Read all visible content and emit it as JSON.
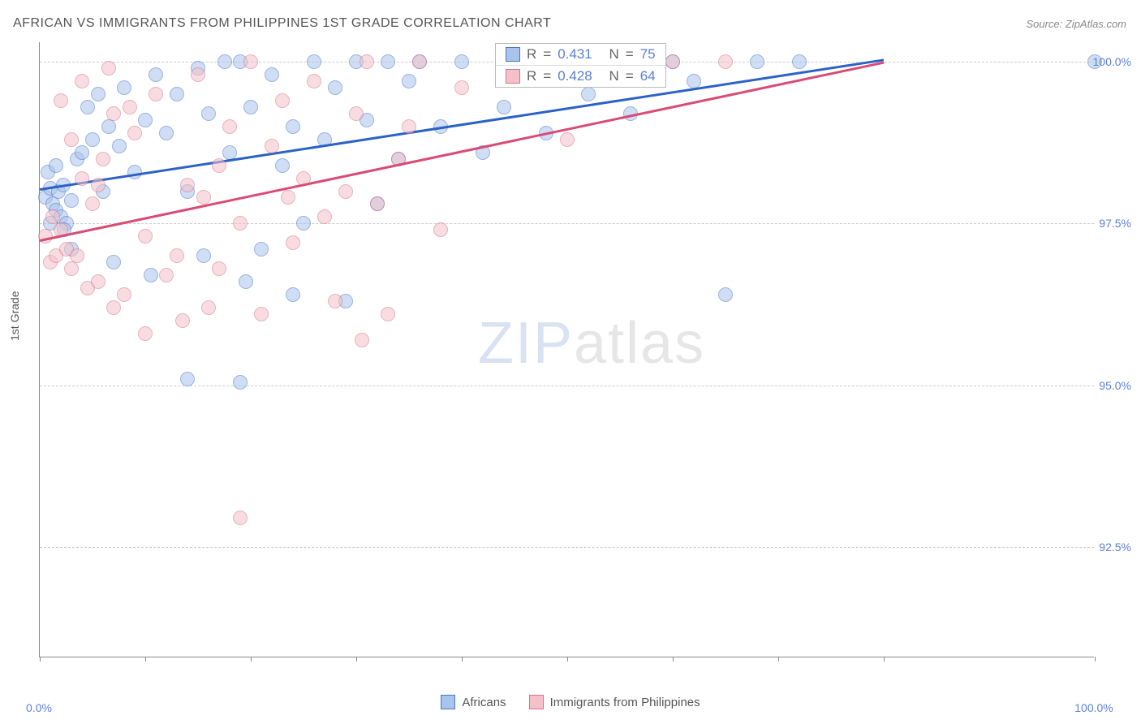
{
  "title": "AFRICAN VS IMMIGRANTS FROM PHILIPPINES 1ST GRADE CORRELATION CHART",
  "source": "Source: ZipAtlas.com",
  "ylabel": "1st Grade",
  "watermark": {
    "zip": "ZIP",
    "atlas": "atlas"
  },
  "chart": {
    "type": "scatter",
    "background_color": "#ffffff",
    "grid_color": "#cccccc",
    "axis_color": "#888888",
    "title_fontsize": 16,
    "label_fontsize": 14,
    "xlim": [
      0,
      100
    ],
    "ylim": [
      90.8,
      100.3
    ],
    "x_ticks": [
      0,
      10,
      20,
      30,
      40,
      50,
      60,
      70,
      80,
      100
    ],
    "y_grid": [
      92.5,
      95.0,
      97.5,
      100.0
    ],
    "y_tick_labels": [
      "92.5%",
      "95.0%",
      "97.5%",
      "100.0%"
    ],
    "x_tick_labels": {
      "0": "0.0%",
      "100": "100.0%"
    },
    "tick_label_color": "#5b7fd6",
    "marker_radius": 9,
    "marker_opacity": 0.55,
    "marker_border_alpha": 0.85,
    "line_width": 2.5
  },
  "series": [
    {
      "name": "Africans",
      "fill_color": "#a9c4ec",
      "stroke_color": "#4a76c6",
      "line_color": "#2b62c7",
      "R": "0.431",
      "N": "75",
      "trend": {
        "x1": 0,
        "y1": 98.05,
        "x2": 80,
        "y2": 100.05
      },
      "points": [
        [
          0.5,
          97.9
        ],
        [
          0.8,
          98.3
        ],
        [
          1.0,
          98.05
        ],
        [
          1.2,
          97.8
        ],
        [
          1.5,
          97.7
        ],
        [
          1.8,
          98.0
        ],
        [
          2.0,
          97.6
        ],
        [
          2.2,
          98.1
        ],
        [
          2.5,
          97.5
        ],
        [
          3.0,
          97.85
        ],
        [
          1.0,
          97.5
        ],
        [
          1.5,
          98.4
        ],
        [
          2.3,
          97.4
        ],
        [
          3.0,
          97.1
        ],
        [
          3.5,
          98.5
        ],
        [
          4.0,
          98.6
        ],
        [
          4.5,
          99.3
        ],
        [
          5.0,
          98.8
        ],
        [
          5.5,
          99.5
        ],
        [
          6.0,
          98.0
        ],
        [
          6.5,
          99.0
        ],
        [
          7.5,
          98.7
        ],
        [
          8.0,
          99.6
        ],
        [
          9.0,
          98.3
        ],
        [
          10.0,
          99.1
        ],
        [
          11.0,
          99.8
        ],
        [
          12.0,
          98.9
        ],
        [
          13.0,
          99.5
        ],
        [
          14.0,
          98.0
        ],
        [
          15.0,
          99.9
        ],
        [
          16.0,
          99.2
        ],
        [
          17.5,
          100.0
        ],
        [
          18.0,
          98.6
        ],
        [
          19.0,
          100.0
        ],
        [
          20.0,
          99.3
        ],
        [
          21.0,
          97.1
        ],
        [
          22.0,
          99.8
        ],
        [
          23.0,
          98.4
        ],
        [
          24.0,
          99.0
        ],
        [
          25.0,
          97.5
        ],
        [
          26.0,
          100.0
        ],
        [
          27.0,
          98.8
        ],
        [
          28.0,
          99.6
        ],
        [
          29.0,
          96.3
        ],
        [
          30.0,
          100.0
        ],
        [
          31.0,
          99.1
        ],
        [
          32.0,
          97.8
        ],
        [
          33.0,
          100.0
        ],
        [
          34.0,
          98.5
        ],
        [
          35.0,
          99.7
        ],
        [
          36.0,
          100.0
        ],
        [
          38.0,
          99.0
        ],
        [
          40.0,
          100.0
        ],
        [
          42.0,
          98.6
        ],
        [
          44.0,
          99.3
        ],
        [
          46.0,
          100.0
        ],
        [
          48.0,
          98.9
        ],
        [
          50.0,
          100.0
        ],
        [
          52.0,
          99.5
        ],
        [
          54.0,
          100.0
        ],
        [
          56.0,
          99.2
        ],
        [
          58.0,
          100.0
        ],
        [
          60.0,
          100.0
        ],
        [
          62.0,
          99.7
        ],
        [
          65.0,
          96.4
        ],
        [
          68.0,
          100.0
        ],
        [
          72.0,
          100.0
        ],
        [
          100.0,
          100.0
        ],
        [
          14.0,
          95.1
        ],
        [
          19.0,
          95.05
        ],
        [
          7.0,
          96.9
        ],
        [
          10.5,
          96.7
        ],
        [
          24.0,
          96.4
        ],
        [
          15.5,
          97.0
        ],
        [
          19.5,
          96.6
        ]
      ]
    },
    {
      "name": "Immigrants from Philippines",
      "fill_color": "#f4c1c9",
      "stroke_color": "#d6738a",
      "line_color": "#d94b73",
      "R": "0.428",
      "N": "64",
      "trend": {
        "x1": 0,
        "y1": 97.25,
        "x2": 80,
        "y2": 100.0
      },
      "points": [
        [
          0.5,
          97.3
        ],
        [
          1.0,
          96.9
        ],
        [
          1.2,
          97.6
        ],
        [
          1.5,
          97.0
        ],
        [
          2.0,
          97.4
        ],
        [
          2.5,
          97.1
        ],
        [
          3.0,
          96.8
        ],
        [
          3.5,
          97.0
        ],
        [
          4.0,
          98.2
        ],
        [
          4.5,
          96.5
        ],
        [
          5.0,
          97.8
        ],
        [
          5.5,
          96.6
        ],
        [
          6.0,
          98.5
        ],
        [
          7.0,
          99.2
        ],
        [
          8.0,
          96.4
        ],
        [
          9.0,
          98.9
        ],
        [
          10.0,
          97.3
        ],
        [
          11.0,
          99.5
        ],
        [
          12.0,
          96.7
        ],
        [
          13.0,
          97.0
        ],
        [
          14.0,
          98.1
        ],
        [
          15.0,
          99.8
        ],
        [
          16.0,
          96.2
        ],
        [
          17.0,
          98.4
        ],
        [
          18.0,
          99.0
        ],
        [
          19.0,
          97.5
        ],
        [
          20.0,
          100.0
        ],
        [
          21.0,
          96.1
        ],
        [
          22.0,
          98.7
        ],
        [
          23.0,
          99.4
        ],
        [
          24.0,
          97.2
        ],
        [
          25.0,
          98.2
        ],
        [
          26.0,
          99.7
        ],
        [
          27.0,
          97.6
        ],
        [
          28.0,
          96.3
        ],
        [
          29.0,
          98.0
        ],
        [
          30.0,
          99.2
        ],
        [
          31.0,
          100.0
        ],
        [
          32.0,
          97.8
        ],
        [
          33.0,
          96.1
        ],
        [
          34.0,
          98.5
        ],
        [
          35.0,
          99.0
        ],
        [
          36.0,
          100.0
        ],
        [
          38.0,
          97.4
        ],
        [
          40.0,
          99.6
        ],
        [
          45.0,
          100.0
        ],
        [
          50.0,
          98.8
        ],
        [
          55.0,
          100.0
        ],
        [
          60.0,
          100.0
        ],
        [
          65.0,
          100.0
        ],
        [
          2.0,
          99.4
        ],
        [
          4.0,
          99.7
        ],
        [
          6.5,
          99.9
        ],
        [
          8.5,
          99.3
        ],
        [
          3.0,
          98.8
        ],
        [
          5.5,
          98.1
        ],
        [
          19.0,
          92.95
        ],
        [
          7.0,
          96.2
        ],
        [
          10.0,
          95.8
        ],
        [
          13.5,
          96.0
        ],
        [
          15.5,
          97.9
        ],
        [
          17.0,
          96.8
        ],
        [
          23.5,
          97.9
        ],
        [
          30.5,
          95.7
        ]
      ]
    }
  ],
  "legend": {
    "items": [
      {
        "label": "Africans",
        "fill": "#a9c4ec",
        "stroke": "#4a76c6"
      },
      {
        "label": "Immigrants from Philippines",
        "fill": "#f4c1c9",
        "stroke": "#d6738a"
      }
    ]
  },
  "stats_labels": {
    "R": "R",
    "N": "N",
    "eq": "="
  }
}
